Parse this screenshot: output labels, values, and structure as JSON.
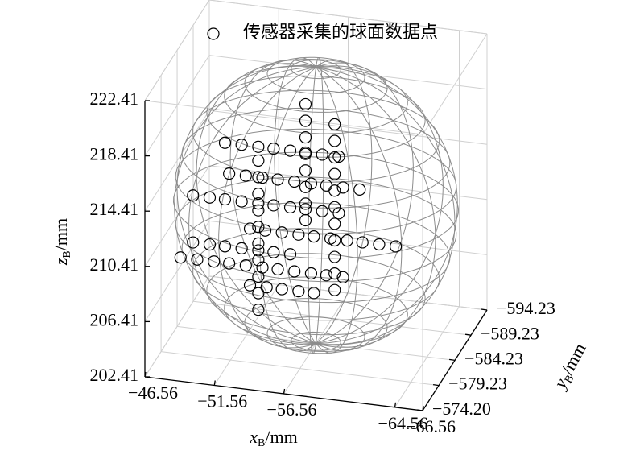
{
  "chart_data": {
    "type": "scatter3d",
    "xlabel": {
      "symbol": "x",
      "subscript": "B",
      "unit": "/mm"
    },
    "ylabel": {
      "symbol": "y",
      "subscript": "B",
      "unit": "/mm"
    },
    "zlabel": {
      "symbol": "z",
      "subscript": "B",
      "unit": "/mm"
    },
    "xlim": [
      -46.56,
      -66.56
    ],
    "ylim": [
      -574.2,
      -594.23
    ],
    "zlim": [
      202.41,
      222.41
    ],
    "xticks": [
      {
        "value": -46.56,
        "label": "−46.56"
      },
      {
        "value": -51.56,
        "label": "−51.56"
      },
      {
        "value": -56.56,
        "label": "−56.56"
      },
      {
        "value": -64.56,
        "label": "−64.56"
      },
      {
        "value": -66.56,
        "label": "−66.56"
      }
    ],
    "yticks": [
      {
        "value": -594.23,
        "label": "−594.23"
      },
      {
        "value": -589.23,
        "label": "−589.23"
      },
      {
        "value": -584.23,
        "label": "−584.23"
      },
      {
        "value": -579.23,
        "label": "−579.23"
      },
      {
        "value": -574.2,
        "label": "−574.20"
      }
    ],
    "zticks": [
      202.41,
      206.41,
      210.41,
      214.41,
      218.41,
      222.41
    ],
    "grid": true,
    "legend": "top",
    "series": [
      {
        "name": "传感器采集的球面数据点",
        "color": "#000000",
        "x": [
          -51.4,
          -52.6,
          -53.8,
          -54.9,
          -56.1,
          -57.2,
          -58.4,
          -59.6,
          -51.7,
          -52.9,
          -54.1,
          -55.2,
          -56.4,
          -57.6,
          -58.7,
          -59.9,
          -61.1,
          -49.1,
          -50.3,
          -51.4,
          -52.6,
          -53.8,
          -54.9,
          -56.1,
          -57.2,
          -58.4,
          -59.6,
          -53.2,
          -54.3,
          -55.5,
          -56.7,
          -57.8,
          -59.0,
          -60.2,
          -61.3,
          -62.5,
          -63.7,
          -49.1,
          -50.3,
          -51.4,
          -52.6,
          -53.8,
          -54.9,
          -56.1,
          -48.2,
          -49.4,
          -50.6,
          -51.7,
          -52.9,
          -54.1,
          -55.2,
          -56.4,
          -57.6,
          -58.7,
          -59.9,
          -53.2,
          -54.4,
          -55.5,
          -56.7,
          -57.8,
          -53.8,
          -53.8,
          -53.8,
          -53.8,
          -53.8,
          -53.8,
          -53.8,
          -53.8,
          -53.8,
          -53.8,
          -57.2,
          -57.2,
          -57.2,
          -57.2,
          -57.2,
          -57.2,
          -57.2,
          -57.2,
          -59.3,
          -59.3,
          -59.3,
          -59.3,
          -59.3,
          -59.3,
          -59.3,
          -59.3,
          -59.3,
          -59.3,
          -59.3
        ],
        "y": [
          -578.2,
          -578.2,
          -578.2,
          -578.2,
          -578.2,
          -578.2,
          -578.2,
          -578.2,
          -578.2,
          -578.2,
          -578.2,
          -578.2,
          -578.2,
          -578.2,
          -578.2,
          -578.2,
          -578.2,
          -578.2,
          -578.2,
          -578.2,
          -578.2,
          -578.2,
          -578.2,
          -578.2,
          -578.2,
          -578.2,
          -578.2,
          -578.2,
          -578.2,
          -578.2,
          -578.2,
          -578.2,
          -578.2,
          -578.2,
          -578.2,
          -578.2,
          -578.2,
          -578.2,
          -578.2,
          -578.2,
          -578.2,
          -578.2,
          -578.2,
          -578.2,
          -578.2,
          -578.2,
          -578.2,
          -578.2,
          -578.2,
          -578.2,
          -578.2,
          -578.2,
          -578.2,
          -578.2,
          -578.2,
          -578.2,
          -578.2,
          -578.2,
          -578.2,
          -578.2,
          -578.2,
          -578.2,
          -578.2,
          -578.2,
          -578.2,
          -578.2,
          -578.2,
          -578.2,
          -578.2,
          -578.2,
          -578.2,
          -578.2,
          -578.2,
          -578.2,
          -578.2,
          -578.2,
          -578.2,
          -578.2,
          -578.2,
          -578.2,
          -578.2,
          -578.2,
          -578.2,
          -578.2,
          -578.2,
          -578.2,
          -578.2,
          -578.2,
          -578.2
        ],
        "z": [
          218.5,
          218.5,
          218.5,
          218.5,
          218.5,
          218.5,
          218.5,
          218.5,
          216.3,
          216.3,
          216.3,
          216.3,
          216.3,
          216.3,
          216.3,
          216.3,
          216.3,
          214.4,
          214.4,
          214.4,
          214.4,
          214.4,
          214.4,
          214.4,
          214.4,
          214.4,
          214.4,
          212.5,
          212.5,
          212.5,
          212.5,
          212.5,
          212.5,
          212.5,
          212.5,
          212.5,
          212.5,
          211.0,
          211.0,
          211.0,
          211.0,
          211.0,
          211.0,
          211.0,
          209.8,
          209.8,
          209.8,
          209.8,
          209.8,
          209.8,
          209.8,
          209.8,
          209.8,
          209.8,
          209.8,
          208.4,
          208.4,
          208.4,
          208.4,
          208.4,
          206.7,
          207.9,
          209.1,
          210.3,
          211.5,
          212.7,
          213.9,
          215.1,
          216.3,
          217.5,
          213.6,
          214.8,
          216.0,
          217.2,
          218.4,
          219.6,
          220.8,
          222.0,
          208.8,
          210.0,
          211.2,
          212.4,
          213.6,
          214.8,
          216.0,
          217.2,
          218.4,
          219.6,
          220.8
        ]
      }
    ]
  }
}
